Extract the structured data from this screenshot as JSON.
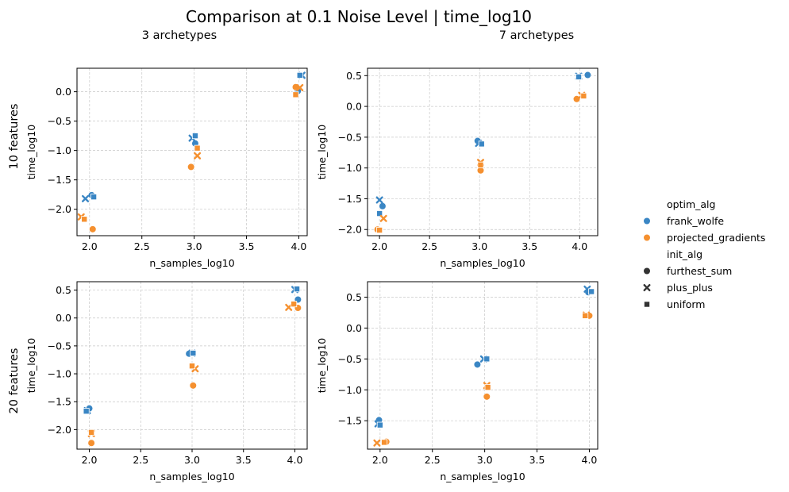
{
  "suptitle": "Comparison at 0.1 Noise Level | time_log10",
  "column_titles": [
    "3 archetypes",
    "7 archetypes"
  ],
  "row_labels": [
    "10 features",
    "20 features"
  ],
  "legend": {
    "hue_title": "optim_alg",
    "hue_entries": [
      {
        "label": "frank_wolfe",
        "color": "#3a86c4"
      },
      {
        "label": "projected_gradients",
        "color": "#f5902f"
      }
    ],
    "style_title": "init_alg",
    "style_entries": [
      {
        "label": "furthest_sum",
        "marker": "circle"
      },
      {
        "label": "plus_plus",
        "marker": "x"
      },
      {
        "label": "uniform",
        "marker": "square"
      }
    ]
  },
  "chart_data": [
    {
      "type": "scatter",
      "row": 0,
      "col": 0,
      "xlabel": "n_samples_log10",
      "ylabel": "time_log10",
      "xlim": [
        1.88,
        4.08
      ],
      "ylim": [
        -2.45,
        0.4
      ],
      "xticks": [
        2.0,
        2.5,
        3.0,
        3.5,
        4.0
      ],
      "yticks": [
        -2.0,
        -1.5,
        -1.0,
        -0.5,
        0.0
      ],
      "grid": true,
      "points": [
        {
          "x": 2.02,
          "y": -1.76,
          "optim": "frank_wolfe",
          "init": "furthest_sum"
        },
        {
          "x": 1.96,
          "y": -1.82,
          "optim": "frank_wolfe",
          "init": "plus_plus"
        },
        {
          "x": 2.04,
          "y": -1.79,
          "optim": "frank_wolfe",
          "init": "uniform"
        },
        {
          "x": 2.03,
          "y": -2.34,
          "optim": "projected_gradients",
          "init": "furthest_sum"
        },
        {
          "x": 1.92,
          "y": -2.13,
          "optim": "projected_gradients",
          "init": "plus_plus"
        },
        {
          "x": 1.95,
          "y": -2.17,
          "optim": "projected_gradients",
          "init": "uniform"
        },
        {
          "x": 3.01,
          "y": -0.88,
          "optim": "frank_wolfe",
          "init": "furthest_sum"
        },
        {
          "x": 2.98,
          "y": -0.79,
          "optim": "frank_wolfe",
          "init": "plus_plus"
        },
        {
          "x": 3.01,
          "y": -0.75,
          "optim": "frank_wolfe",
          "init": "uniform"
        },
        {
          "x": 2.97,
          "y": -1.28,
          "optim": "projected_gradients",
          "init": "furthest_sum"
        },
        {
          "x": 3.03,
          "y": -1.09,
          "optim": "projected_gradients",
          "init": "plus_plus"
        },
        {
          "x": 3.03,
          "y": -0.96,
          "optim": "projected_gradients",
          "init": "uniform"
        },
        {
          "x": 3.99,
          "y": 0.01,
          "optim": "frank_wolfe",
          "init": "furthest_sum"
        },
        {
          "x": 4.03,
          "y": 0.28,
          "optim": "frank_wolfe",
          "init": "plus_plus"
        },
        {
          "x": 4.01,
          "y": 0.28,
          "optim": "frank_wolfe",
          "init": "uniform"
        },
        {
          "x": 3.97,
          "y": 0.08,
          "optim": "projected_gradients",
          "init": "furthest_sum"
        },
        {
          "x": 4.01,
          "y": 0.07,
          "optim": "projected_gradients",
          "init": "plus_plus"
        },
        {
          "x": 3.97,
          "y": -0.05,
          "optim": "projected_gradients",
          "init": "uniform"
        }
      ]
    },
    {
      "type": "scatter",
      "row": 0,
      "col": 1,
      "xlabel": "n_samples_log10",
      "ylabel": "time_log10",
      "xlim": [
        1.88,
        4.18
      ],
      "ylim": [
        -2.1,
        0.62
      ],
      "xticks": [
        2.0,
        2.5,
        3.0,
        3.5,
        4.0
      ],
      "yticks": [
        -2.0,
        -1.5,
        -1.0,
        -0.5,
        0.0,
        0.5
      ],
      "grid": true,
      "points": [
        {
          "x": 2.03,
          "y": -1.62,
          "optim": "frank_wolfe",
          "init": "furthest_sum"
        },
        {
          "x": 2.0,
          "y": -1.52,
          "optim": "frank_wolfe",
          "init": "plus_plus"
        },
        {
          "x": 2.0,
          "y": -1.74,
          "optim": "frank_wolfe",
          "init": "uniform"
        },
        {
          "x": 1.98,
          "y": -2.0,
          "optim": "projected_gradients",
          "init": "furthest_sum"
        },
        {
          "x": 2.04,
          "y": -1.82,
          "optim": "projected_gradients",
          "init": "plus_plus"
        },
        {
          "x": 2.0,
          "y": -2.01,
          "optim": "projected_gradients",
          "init": "uniform"
        },
        {
          "x": 2.98,
          "y": -0.56,
          "optim": "frank_wolfe",
          "init": "furthest_sum"
        },
        {
          "x": 2.99,
          "y": -0.6,
          "optim": "frank_wolfe",
          "init": "plus_plus"
        },
        {
          "x": 3.02,
          "y": -0.61,
          "optim": "frank_wolfe",
          "init": "uniform"
        },
        {
          "x": 3.01,
          "y": -1.04,
          "optim": "projected_gradients",
          "init": "furthest_sum"
        },
        {
          "x": 3.01,
          "y": -0.91,
          "optim": "projected_gradients",
          "init": "plus_plus"
        },
        {
          "x": 3.01,
          "y": -0.95,
          "optim": "projected_gradients",
          "init": "uniform"
        },
        {
          "x": 4.08,
          "y": 0.51,
          "optim": "frank_wolfe",
          "init": "furthest_sum"
        },
        {
          "x": 3.99,
          "y": 0.49,
          "optim": "frank_wolfe",
          "init": "plus_plus"
        },
        {
          "x": 3.99,
          "y": 0.48,
          "optim": "frank_wolfe",
          "init": "uniform"
        },
        {
          "x": 3.97,
          "y": 0.12,
          "optim": "projected_gradients",
          "init": "furthest_sum"
        },
        {
          "x": 4.02,
          "y": 0.18,
          "optim": "projected_gradients",
          "init": "plus_plus"
        },
        {
          "x": 4.04,
          "y": 0.17,
          "optim": "projected_gradients",
          "init": "uniform"
        }
      ]
    },
    {
      "type": "scatter",
      "row": 1,
      "col": 0,
      "xlabel": "n_samples_log10",
      "ylabel": "time_log10",
      "xlim": [
        1.88,
        4.12
      ],
      "ylim": [
        -2.35,
        0.65
      ],
      "xticks": [
        2.0,
        2.5,
        3.0,
        3.5,
        4.0
      ],
      "yticks": [
        -2.0,
        -1.5,
        -1.0,
        -0.5,
        0.0,
        0.5
      ],
      "grid": true,
      "points": [
        {
          "x": 2.0,
          "y": -1.62,
          "optim": "frank_wolfe",
          "init": "furthest_sum"
        },
        {
          "x": 1.98,
          "y": -1.66,
          "optim": "frank_wolfe",
          "init": "plus_plus"
        },
        {
          "x": 1.97,
          "y": -1.67,
          "optim": "frank_wolfe",
          "init": "uniform"
        },
        {
          "x": 2.02,
          "y": -2.24,
          "optim": "projected_gradients",
          "init": "furthest_sum"
        },
        {
          "x": 2.02,
          "y": -2.07,
          "optim": "projected_gradients",
          "init": "plus_plus"
        },
        {
          "x": 2.02,
          "y": -2.05,
          "optim": "projected_gradients",
          "init": "uniform"
        },
        {
          "x": 2.97,
          "y": -0.64,
          "optim": "frank_wolfe",
          "init": "furthest_sum"
        },
        {
          "x": 3.0,
          "y": -0.63,
          "optim": "frank_wolfe",
          "init": "plus_plus"
        },
        {
          "x": 3.01,
          "y": -0.63,
          "optim": "frank_wolfe",
          "init": "uniform"
        },
        {
          "x": 3.01,
          "y": -1.21,
          "optim": "projected_gradients",
          "init": "furthest_sum"
        },
        {
          "x": 3.03,
          "y": -0.91,
          "optim": "projected_gradients",
          "init": "plus_plus"
        },
        {
          "x": 3.0,
          "y": -0.86,
          "optim": "projected_gradients",
          "init": "uniform"
        },
        {
          "x": 4.03,
          "y": 0.33,
          "optim": "frank_wolfe",
          "init": "furthest_sum"
        },
        {
          "x": 4.0,
          "y": 0.51,
          "optim": "frank_wolfe",
          "init": "plus_plus"
        },
        {
          "x": 4.02,
          "y": 0.52,
          "optim": "frank_wolfe",
          "init": "uniform"
        },
        {
          "x": 4.03,
          "y": 0.18,
          "optim": "projected_gradients",
          "init": "furthest_sum"
        },
        {
          "x": 3.94,
          "y": 0.19,
          "optim": "projected_gradients",
          "init": "plus_plus"
        },
        {
          "x": 3.99,
          "y": 0.25,
          "optim": "projected_gradients",
          "init": "uniform"
        }
      ]
    },
    {
      "type": "scatter",
      "row": 1,
      "col": 1,
      "xlabel": "n_samples_log10",
      "ylabel": "time_log10",
      "xlim": [
        1.88,
        4.08
      ],
      "ylim": [
        -1.96,
        0.75
      ],
      "xticks": [
        2.0,
        2.5,
        3.0,
        3.5,
        4.0
      ],
      "yticks": [
        -1.5,
        -1.0,
        -0.5,
        0.0,
        0.5
      ],
      "grid": true,
      "points": [
        {
          "x": 1.99,
          "y": -1.49,
          "optim": "frank_wolfe",
          "init": "furthest_sum"
        },
        {
          "x": 1.98,
          "y": -1.55,
          "optim": "frank_wolfe",
          "init": "plus_plus"
        },
        {
          "x": 2.0,
          "y": -1.57,
          "optim": "frank_wolfe",
          "init": "uniform"
        },
        {
          "x": 2.06,
          "y": -1.84,
          "optim": "projected_gradients",
          "init": "furthest_sum"
        },
        {
          "x": 1.97,
          "y": -1.86,
          "optim": "projected_gradients",
          "init": "plus_plus"
        },
        {
          "x": 2.04,
          "y": -1.85,
          "optim": "projected_gradients",
          "init": "uniform"
        },
        {
          "x": 2.93,
          "y": -0.59,
          "optim": "frank_wolfe",
          "init": "furthest_sum"
        },
        {
          "x": 2.99,
          "y": -0.5,
          "optim": "frank_wolfe",
          "init": "plus_plus"
        },
        {
          "x": 3.02,
          "y": -0.5,
          "optim": "frank_wolfe",
          "init": "uniform"
        },
        {
          "x": 3.02,
          "y": -1.11,
          "optim": "projected_gradients",
          "init": "furthest_sum"
        },
        {
          "x": 3.02,
          "y": -0.93,
          "optim": "projected_gradients",
          "init": "plus_plus"
        },
        {
          "x": 3.03,
          "y": -0.96,
          "optim": "projected_gradients",
          "init": "uniform"
        },
        {
          "x": 3.99,
          "y": 0.58,
          "optim": "frank_wolfe",
          "init": "furthest_sum"
        },
        {
          "x": 3.98,
          "y": 0.63,
          "optim": "frank_wolfe",
          "init": "plus_plus"
        },
        {
          "x": 4.02,
          "y": 0.59,
          "optim": "frank_wolfe",
          "init": "uniform"
        },
        {
          "x": 4.0,
          "y": 0.2,
          "optim": "projected_gradients",
          "init": "furthest_sum"
        },
        {
          "x": 3.97,
          "y": 0.21,
          "optim": "projected_gradients",
          "init": "plus_plus"
        },
        {
          "x": 3.96,
          "y": 0.2,
          "optim": "projected_gradients",
          "init": "uniform"
        }
      ]
    }
  ]
}
